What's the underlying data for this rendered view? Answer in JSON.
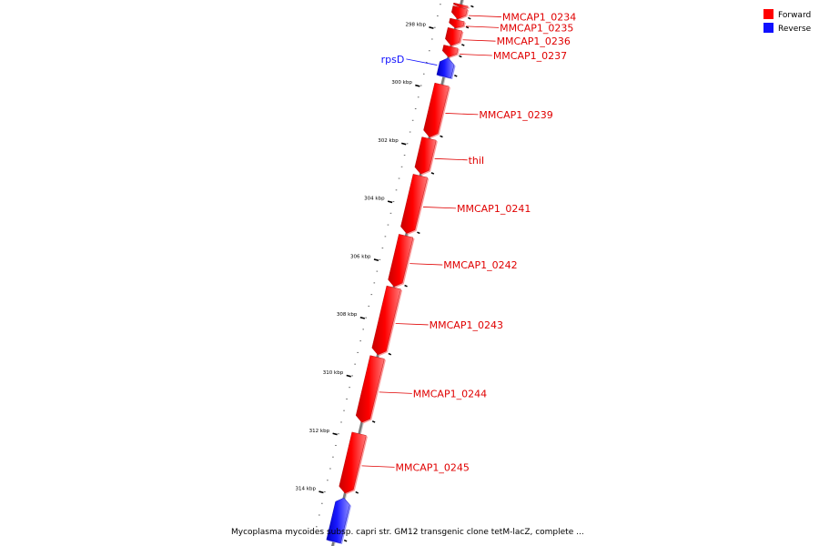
{
  "legend": {
    "forward_label": "Forward",
    "reverse_label": "Reverse",
    "forward_color": "#ff0000",
    "reverse_color": "#1010ff"
  },
  "caption": "Mycoplasma mycoides subsp. capri str. GM12 transgenic clone tetM-lacZ, complete ...",
  "axis": {
    "start_kbp": 297.05,
    "end_kbp": 315.55,
    "major_ticks": [
      {
        "kbp": 298,
        "label": "298 kbp"
      },
      {
        "kbp": 300,
        "label": "300 kbp"
      },
      {
        "kbp": 302,
        "label": "302 kbp"
      },
      {
        "kbp": 304,
        "label": "304 kbp"
      },
      {
        "kbp": 306,
        "label": "306 kbp"
      },
      {
        "kbp": 308,
        "label": "308 kbp"
      },
      {
        "kbp": 310,
        "label": "310 kbp"
      },
      {
        "kbp": 312,
        "label": "312 kbp"
      },
      {
        "kbp": 314,
        "label": "314 kbp"
      }
    ]
  },
  "features": [
    {
      "label": "",
      "strand": "forward",
      "start_kbp": 297.05,
      "end_kbp": 297.14
    },
    {
      "label": "MMCAP1_0234",
      "strand": "forward",
      "start_kbp": 297.15,
      "end_kbp": 297.55
    },
    {
      "label": "MMCAP1_0235",
      "strand": "forward",
      "start_kbp": 297.58,
      "end_kbp": 297.86
    },
    {
      "label": "MMCAP1_0236",
      "strand": "forward",
      "start_kbp": 297.9,
      "end_kbp": 298.47
    },
    {
      "label": "MMCAP1_0237",
      "strand": "forward",
      "start_kbp": 298.5,
      "end_kbp": 298.86
    },
    {
      "label": "rpsD",
      "strand": "reverse",
      "start_kbp": 298.89,
      "end_kbp": 299.53
    },
    {
      "label": "MMCAP1_0239",
      "strand": "forward",
      "start_kbp": 299.81,
      "end_kbp": 301.62
    },
    {
      "label": "thiI",
      "strand": "forward",
      "start_kbp": 301.67,
      "end_kbp": 302.89
    },
    {
      "label": "MMCAP1_0241",
      "strand": "forward",
      "start_kbp": 302.95,
      "end_kbp": 304.94
    },
    {
      "label": "MMCAP1_0242",
      "strand": "forward",
      "start_kbp": 305.02,
      "end_kbp": 306.77
    },
    {
      "label": "MMCAP1_0243",
      "strand": "forward",
      "start_kbp": 306.8,
      "end_kbp": 309.12
    },
    {
      "label": "MMCAP1_0244",
      "strand": "forward",
      "start_kbp": 309.2,
      "end_kbp": 311.45
    },
    {
      "label": "MMCAP1_0245",
      "strand": "forward",
      "start_kbp": 311.84,
      "end_kbp": 313.89
    },
    {
      "label": "",
      "strand": "reverse",
      "start_kbp": 314.05,
      "end_kbp": 315.55
    }
  ]
}
